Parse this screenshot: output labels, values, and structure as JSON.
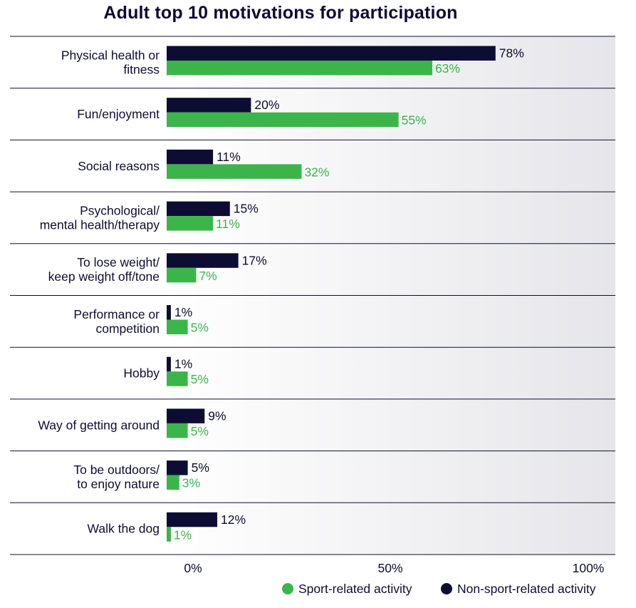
{
  "chart_data": {
    "type": "bar",
    "orientation": "horizontal",
    "title": "Adult top 10 motivations for participation",
    "categories": [
      [
        "Physical health or",
        "fitness"
      ],
      [
        "Fun/enjoyment"
      ],
      [
        "Social reasons"
      ],
      [
        "Psychological/",
        "mental health/therapy"
      ],
      [
        "To lose weight/",
        "keep weight off/tone"
      ],
      [
        "Performance or",
        "competition"
      ],
      [
        "Hobby"
      ],
      [
        "Way of getting around"
      ],
      [
        "To be outdoors/",
        "to enjoy nature"
      ],
      [
        "Walk the dog"
      ]
    ],
    "series": [
      {
        "name": "Non-sport-related activity",
        "color": "#0d0d33",
        "values": [
          78,
          20,
          11,
          15,
          17,
          1,
          1,
          9,
          5,
          12
        ],
        "labels": [
          "78%",
          "20%",
          "11%",
          "15%",
          "17%",
          "1%",
          "1%",
          "9%",
          "5%",
          "12%"
        ]
      },
      {
        "name": "Sport-related activity",
        "color": "#3bb54a",
        "values": [
          63,
          55,
          32,
          11,
          7,
          5,
          5,
          5,
          3,
          1
        ],
        "labels": [
          "63%",
          "55%",
          "32%",
          "11%",
          "7%",
          "5%",
          "5%",
          "5%",
          "3%",
          "1%"
        ]
      }
    ],
    "xlim": [
      0,
      100
    ],
    "xticks": [
      0,
      50,
      100
    ],
    "xtick_labels": [
      "0%",
      "50%",
      "100%"
    ],
    "legend": {
      "position": "bottom-right",
      "entries": [
        {
          "label": "Sport-related activity",
          "color": "#3bb54a"
        },
        {
          "label": "Non-sport-related activity",
          "color": "#0d0d33"
        }
      ]
    },
    "background_gradient": [
      "#ffffff",
      "#e6e6ea"
    ]
  }
}
